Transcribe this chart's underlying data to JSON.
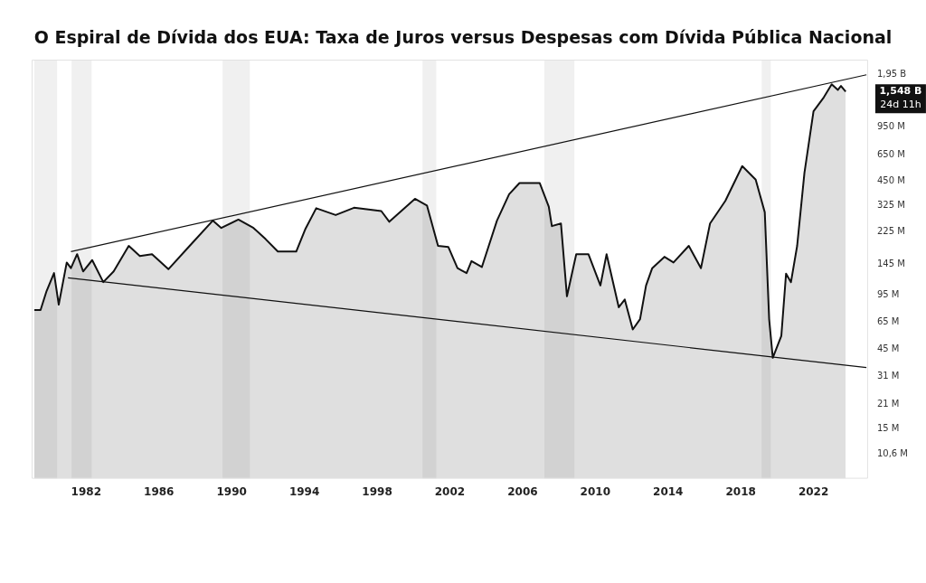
{
  "chart_data": {
    "type": "area",
    "title": "O Espiral de Dívida dos EUA: Taxa de Juros versus Despesas com Dívida Pública Nacional",
    "xlim": [
      1979,
      2025
    ],
    "xticks": [
      1982,
      1986,
      1990,
      1994,
      1998,
      2002,
      2006,
      2010,
      2014,
      2018,
      2022
    ],
    "ylim": [
      7600000,
      2400000000
    ],
    "log": "y",
    "yticks": [
      {
        "value": 10600000,
        "label": "10,6 M"
      },
      {
        "value": 15000000,
        "label": "15 M"
      },
      {
        "value": 21000000,
        "label": "21 M"
      },
      {
        "value": 31000000,
        "label": "31 M"
      },
      {
        "value": 45000000,
        "label": "45 M"
      },
      {
        "value": 65000000,
        "label": "65 M"
      },
      {
        "value": 95000000,
        "label": "95 M"
      },
      {
        "value": 145000000,
        "label": "145 M"
      },
      {
        "value": 225000000,
        "label": "225 M"
      },
      {
        "value": 325000000,
        "label": "325 M"
      },
      {
        "value": 450000000,
        "label": "450 M"
      },
      {
        "value": 650000000,
        "label": "650 M"
      },
      {
        "value": 950000000,
        "label": "950 M"
      },
      {
        "value": 1950000000,
        "label": "1,95 B"
      }
    ],
    "grid": false,
    "legend": false,
    "marker": "none",
    "line_style": "solid",
    "series": [
      {
        "color": "#111111",
        "x": [
          1979.15,
          1979.49,
          1979.82,
          1980.23,
          1980.49,
          1980.93,
          1981.16,
          1981.5,
          1981.83,
          1982.33,
          1982.94,
          1983.51,
          1984.34,
          1984.95,
          1985.62,
          1986.52,
          1987.69,
          1988.96,
          1989.43,
          1990.37,
          1991.2,
          1991.87,
          1992.54,
          1993.55,
          1994.05,
          1994.65,
          1995.72,
          1996.73,
          1998.23,
          1998.67,
          2000.08,
          2000.74,
          2001.35,
          2001.92,
          2002.42,
          2002.92,
          2003.19,
          2003.76,
          2004.59,
          2005.26,
          2005.83,
          2006.94,
          2007.44,
          2007.61,
          2008.11,
          2008.44,
          2008.95,
          2009.62,
          2010.28,
          2010.62,
          2011.29,
          2011.62,
          2012.06,
          2012.46,
          2012.79,
          2013.13,
          2013.8,
          2014.3,
          2015.14,
          2015.81,
          2016.31,
          2017.15,
          2018.08,
          2018.82,
          2019.32,
          2019.56,
          2019.76,
          2020.23,
          2020.49,
          2020.76,
          2021.1,
          2021.5,
          2022.0,
          2022.57,
          2023.0,
          2023.34,
          2023.51,
          2023.77
        ],
        "values": [
          77000000,
          77000000,
          100000000,
          128000000,
          83000000,
          148000000,
          137000000,
          166000000,
          131000000,
          153000000,
          113000000,
          131000000,
          186000000,
          162000000,
          166000000,
          135000000,
          186000000,
          263000000,
          238000000,
          267000000,
          238000000,
          204000000,
          172000000,
          172000000,
          234000000,
          312000000,
          284000000,
          314000000,
          300000000,
          259000000,
          355000000,
          324000000,
          186000000,
          183000000,
          137000000,
          128000000,
          151000000,
          139000000,
          263000000,
          378000000,
          441000000,
          441000000,
          319000000,
          244000000,
          253000000,
          93000000,
          166000000,
          166000000,
          108000000,
          166000000,
          80000000,
          89000000,
          59000000,
          68000000,
          108000000,
          137000000,
          160000000,
          148000000,
          186000000,
          137000000,
          253000000,
          345000000,
          556000000,
          462000000,
          295000000,
          68000000,
          40000000,
          54000000,
          127000000,
          113000000,
          186000000,
          506000000,
          1182000000,
          1433000000,
          1711000000,
          1584000000,
          1672000000,
          1548000000
        ]
      },
      {
        "type": "line",
        "color": "#111111",
        "x": [
          1981.16,
          2024.91
        ],
        "values": [
          172000000,
          1950000000
        ]
      },
      {
        "type": "line",
        "color": "#111111",
        "x": [
          1981.0,
          2024.91
        ],
        "values": [
          120000000,
          35000000
        ]
      }
    ],
    "bands": [
      {
        "axis": "x",
        "from": 1979.15,
        "to": 1980.4,
        "color": "#f0f0f0"
      },
      {
        "axis": "x",
        "from": 1981.2,
        "to": 1982.3,
        "color": "#f0f0f0"
      },
      {
        "axis": "x",
        "from": 1989.5,
        "to": 1991.0,
        "color": "#f0f0f0"
      },
      {
        "axis": "x",
        "from": 2000.5,
        "to": 2001.25,
        "color": "#f0f0f0"
      },
      {
        "axis": "x",
        "from": 2007.2,
        "to": 2008.85,
        "color": "#f0f0f0"
      },
      {
        "axis": "x",
        "from": 2019.15,
        "to": 2019.65,
        "color": "#f0f0f0"
      }
    ],
    "annotations": [
      "1,548 B",
      "24d 11h"
    ]
  }
}
